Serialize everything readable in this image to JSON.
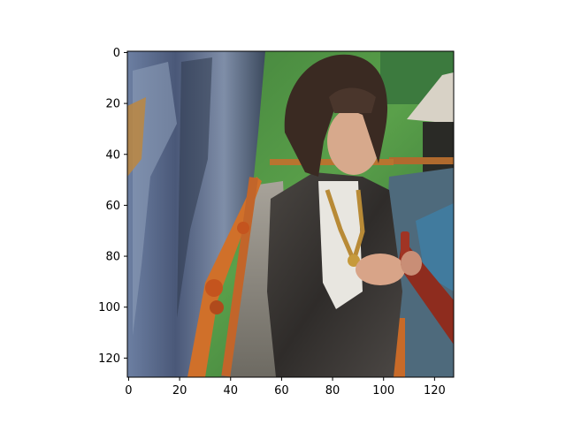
{
  "chart_data": {
    "type": "image",
    "title": "",
    "xlabel": "",
    "ylabel": "",
    "image_size": [
      128,
      128
    ],
    "xlim": [
      -0.5,
      127.5
    ],
    "ylim": [
      127.5,
      -0.5
    ],
    "xticks": [
      0,
      20,
      40,
      60,
      80,
      100,
      120
    ],
    "yticks": [
      0,
      20,
      40,
      60,
      80,
      100,
      120
    ],
    "grid": false,
    "legend": "none",
    "image_description": "Pixelated photo: a woman with a brown bob haircut wearing a dark gray blazer, white top and a gold necklace, looking down at a phone in her hands, standing on a wooden boardwalk with orange railings beside a blue-gray rock wall, green trees and a thatched hut in the background."
  }
}
